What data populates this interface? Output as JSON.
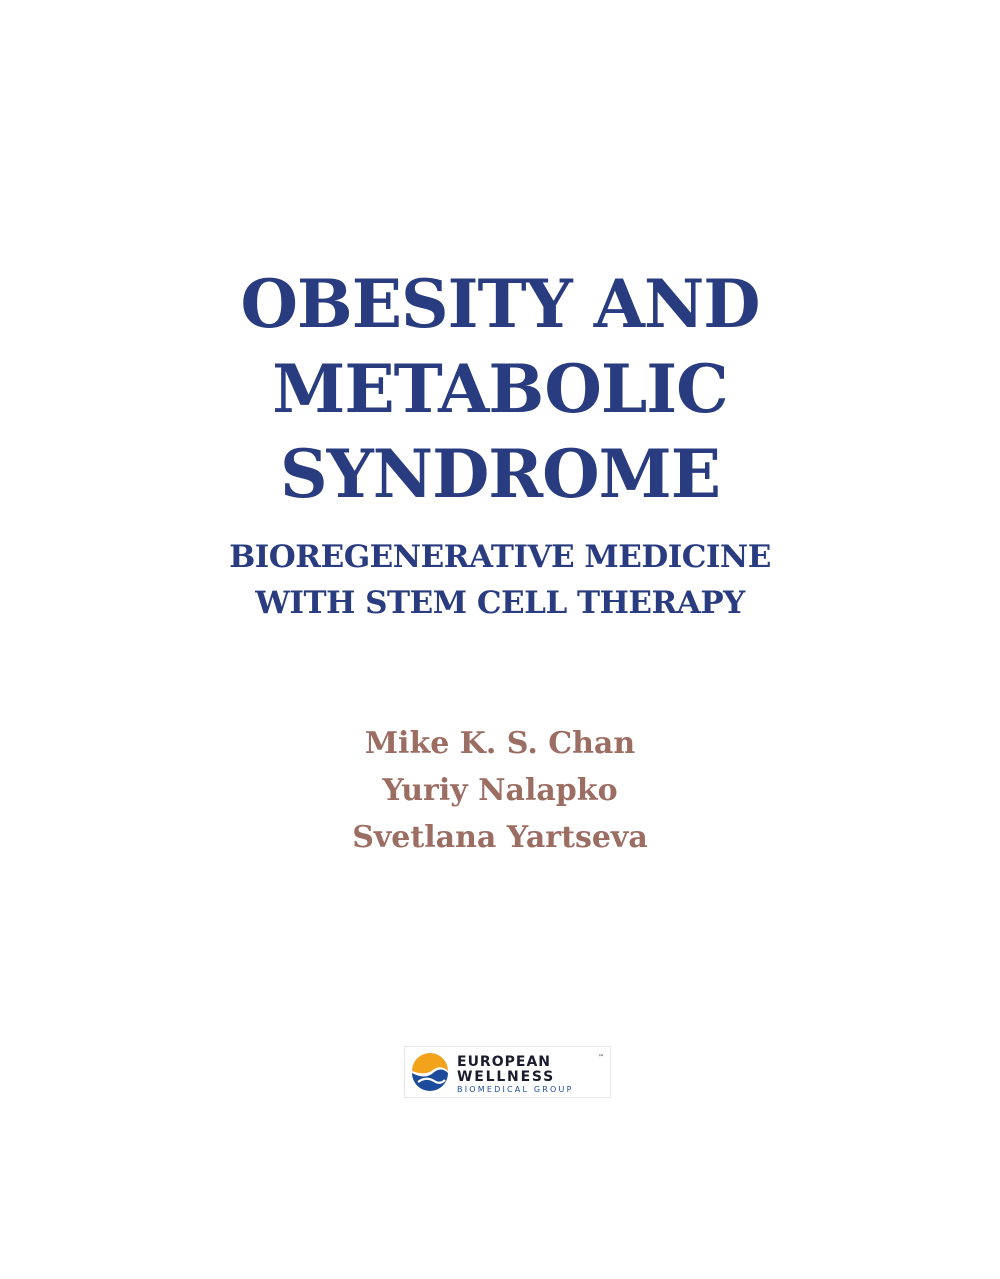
{
  "title": {
    "lines": [
      "OBESITY AND",
      "METABOLIC",
      "SYNDROME"
    ]
  },
  "subtitle": {
    "lines": [
      "BIOREGENERATIVE MEDICINE",
      "WITH STEM CELL THERAPY"
    ]
  },
  "authors": [
    "Mike K. S. Chan",
    "Yuriy Nalapko",
    "Svetlana Yartseva"
  ],
  "publisher_logo": {
    "line1": "EUROPEAN",
    "line2": "WELLNESS",
    "line3": "BIOMEDICAL GROUP",
    "trademark": "™",
    "colors": {
      "orange": "#f2a31b",
      "blue": "#1c4b9b",
      "text": "#1b1b2e"
    }
  },
  "colors": {
    "title": "#2a3c80",
    "authors": "#9c6d62",
    "background": "#ffffff"
  }
}
